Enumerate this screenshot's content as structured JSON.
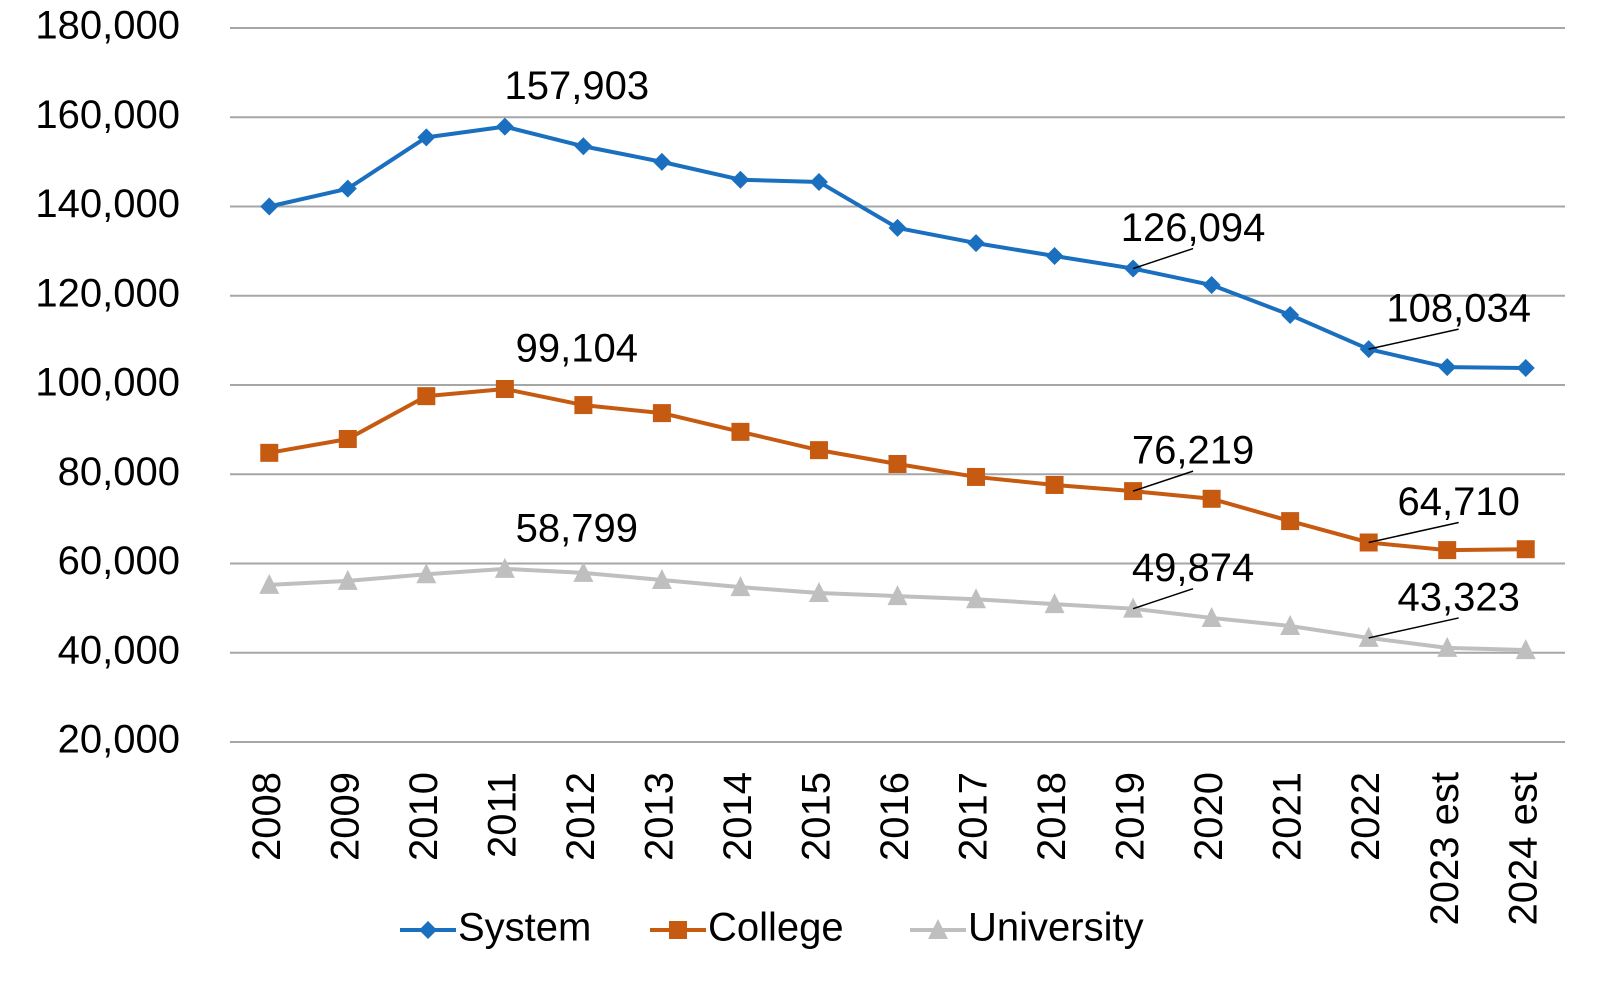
{
  "chart_data": {
    "type": "line",
    "categories": [
      "2008",
      "2009",
      "2010",
      "2011",
      "2012",
      "2013",
      "2014",
      "2015",
      "2016",
      "2017",
      "2018",
      "2019",
      "2020",
      "2021",
      "2022",
      "2023 est",
      "2024 est"
    ],
    "series": [
      {
        "name": "System",
        "color": "#1a6fbf",
        "marker": "diamond",
        "values": [
          140000,
          144000,
          155500,
          157903,
          153500,
          150000,
          146000,
          145500,
          135200,
          131800,
          128900,
          126094,
          122400,
          115700,
          108034,
          104000,
          103800
        ],
        "value_labels": [
          null,
          null,
          null,
          "157,903",
          null,
          null,
          null,
          null,
          null,
          null,
          null,
          "126,094",
          null,
          null,
          "108,034",
          null,
          null
        ]
      },
      {
        "name": "College",
        "color": "#c65a11",
        "marker": "square",
        "values": [
          84800,
          87900,
          97500,
          99104,
          95500,
          93700,
          89500,
          85400,
          82300,
          79400,
          77600,
          76219,
          74500,
          69500,
          64710,
          63000,
          63200
        ],
        "value_labels": [
          null,
          null,
          null,
          "99,104",
          null,
          null,
          null,
          null,
          null,
          null,
          null,
          "76,219",
          null,
          null,
          "64,710",
          null,
          null
        ]
      },
      {
        "name": "University",
        "color": "#bfbfbf",
        "marker": "triangle",
        "values": [
          55200,
          56100,
          57600,
          58799,
          57900,
          56300,
          54700,
          53400,
          52700,
          52000,
          50900,
          49874,
          47800,
          46000,
          43323,
          41100,
          40600
        ],
        "value_labels": [
          null,
          null,
          null,
          "58,799",
          null,
          null,
          null,
          null,
          null,
          null,
          null,
          "49,874",
          null,
          null,
          "43,323",
          null,
          null
        ]
      }
    ],
    "ylim": [
      20000,
      180000
    ],
    "yticks": [
      {
        "value": 20000,
        "label": "20,000"
      },
      {
        "value": 40000,
        "label": "40,000"
      },
      {
        "value": 60000,
        "label": "60,000"
      },
      {
        "value": 80000,
        "label": "80,000"
      },
      {
        "value": 100000,
        "label": "100,000"
      },
      {
        "value": 120000,
        "label": "120,000"
      },
      {
        "value": 140000,
        "label": "140,000"
      },
      {
        "value": 160000,
        "label": "160,000"
      },
      {
        "value": 180000,
        "label": "180,000"
      }
    ],
    "grid": true,
    "legend": "bottom"
  }
}
